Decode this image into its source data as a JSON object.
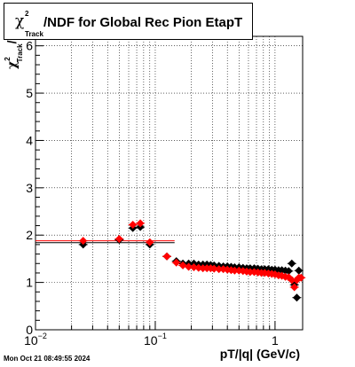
{
  "title": {
    "chi_symbol": "χ",
    "superscript": "2",
    "subscript": "Track",
    "text": "/NDF for Global Rec Pion EtapT"
  },
  "footer_timestamp": "Mon Oct 21 08:49:55 2024",
  "colors": {
    "series_black": "#000000",
    "series_red": "#ff0000",
    "grid": "#000000"
  },
  "chart_data": {
    "type": "scatter",
    "title": "χ²Track/NDF for Global Rec Pion EtapT",
    "xlabel": "pT/|q| (GeV/c)",
    "ylabel": "χ²Track/NDF",
    "xscale": "log",
    "xlim": [
      0.01,
      1.7
    ],
    "ylim": [
      0,
      6.2
    ],
    "x_ticks": [
      {
        "value": 0.01,
        "label": "10"
      },
      {
        "value": 0.1,
        "label": "10"
      },
      {
        "value": 1,
        "label": "1"
      }
    ],
    "x_tick_exponents": [
      "−2",
      "−1",
      ""
    ],
    "y_ticks": [
      0,
      1,
      2,
      3,
      4,
      5,
      6
    ],
    "grid": true,
    "series": [
      {
        "marker": "diamond",
        "color": "#000000",
        "x": [
          0.025,
          0.05,
          0.065,
          0.075,
          0.09,
          0.125,
          0.15,
          0.17,
          0.19,
          0.21,
          0.23,
          0.25,
          0.27,
          0.29,
          0.31,
          0.34,
          0.37,
          0.4,
          0.43,
          0.46,
          0.5,
          0.54,
          0.58,
          0.62,
          0.67,
          0.72,
          0.77,
          0.82,
          0.88,
          0.94,
          1.0,
          1.07,
          1.14,
          1.22,
          1.3,
          1.38,
          1.45,
          1.52,
          1.58
        ],
        "y": [
          1.8,
          1.9,
          2.15,
          2.17,
          1.8,
          1.55,
          1.45,
          1.4,
          1.4,
          1.4,
          1.38,
          1.38,
          1.38,
          1.37,
          1.36,
          1.35,
          1.34,
          1.34,
          1.33,
          1.32,
          1.32,
          1.31,
          1.3,
          1.3,
          1.3,
          1.29,
          1.28,
          1.28,
          1.28,
          1.27,
          1.27,
          1.26,
          1.26,
          1.25,
          1.24,
          1.4,
          0.95,
          0.68,
          1.25
        ]
      },
      {
        "marker": "diamond",
        "color": "#ff0000",
        "x": [
          0.025,
          0.05,
          0.065,
          0.075,
          0.09,
          0.125,
          0.15,
          0.17,
          0.19,
          0.21,
          0.23,
          0.25,
          0.27,
          0.29,
          0.31,
          0.34,
          0.37,
          0.4,
          0.43,
          0.46,
          0.5,
          0.54,
          0.58,
          0.62,
          0.67,
          0.72,
          0.77,
          0.82,
          0.88,
          0.94,
          1.0,
          1.07,
          1.14,
          1.22,
          1.3,
          1.38,
          1.45,
          1.52,
          1.58,
          1.65
        ],
        "y": [
          1.88,
          1.92,
          2.22,
          2.25,
          1.85,
          1.55,
          1.42,
          1.36,
          1.33,
          1.32,
          1.31,
          1.3,
          1.3,
          1.3,
          1.29,
          1.28,
          1.28,
          1.27,
          1.26,
          1.25,
          1.25,
          1.24,
          1.23,
          1.22,
          1.22,
          1.21,
          1.2,
          1.2,
          1.19,
          1.18,
          1.17,
          1.15,
          1.14,
          1.12,
          1.11,
          1.05,
          0.9,
          1.05,
          1.1,
          1.1
        ]
      }
    ],
    "reference_lines": [
      {
        "color": "#000000",
        "x_range": [
          0.01,
          0.145
        ],
        "y": 1.84
      },
      {
        "color": "#ff0000",
        "x_range": [
          0.01,
          0.145
        ],
        "y": 1.88
      }
    ]
  }
}
